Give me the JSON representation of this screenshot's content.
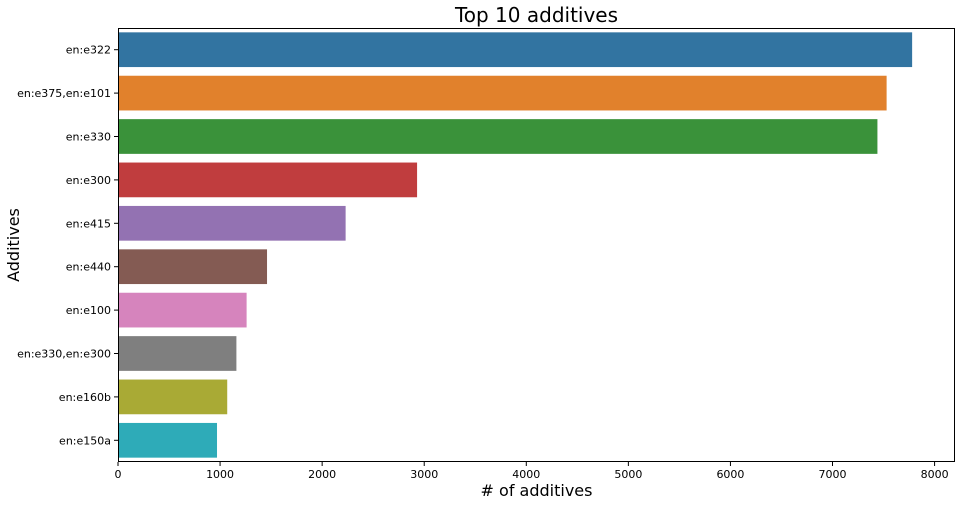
{
  "chart_data": {
    "type": "bar",
    "orientation": "horizontal",
    "title": "Top 10 additives",
    "xlabel": "# of additives",
    "ylabel": "Additives",
    "categories": [
      "en:e322",
      "en:e375,en:e101",
      "en:e330",
      "en:e300",
      "en:e415",
      "en:e440",
      "en:e100",
      "en:e330,en:e300",
      "en:e160b",
      "en:e150a"
    ],
    "values": [
      7780,
      7530,
      7440,
      2930,
      2230,
      1460,
      1260,
      1160,
      1070,
      970
    ],
    "colors": [
      "#3274a1",
      "#e1812c",
      "#3a923a",
      "#c03d3e",
      "#9372b2",
      "#845b53",
      "#d684bd",
      "#7f7f7f",
      "#a9aa35",
      "#2eabb8"
    ],
    "xlim": [
      0,
      8200
    ],
    "xticks": [
      0,
      1000,
      2000,
      3000,
      4000,
      5000,
      6000,
      7000,
      8000
    ],
    "grid": false,
    "legend": "none"
  }
}
